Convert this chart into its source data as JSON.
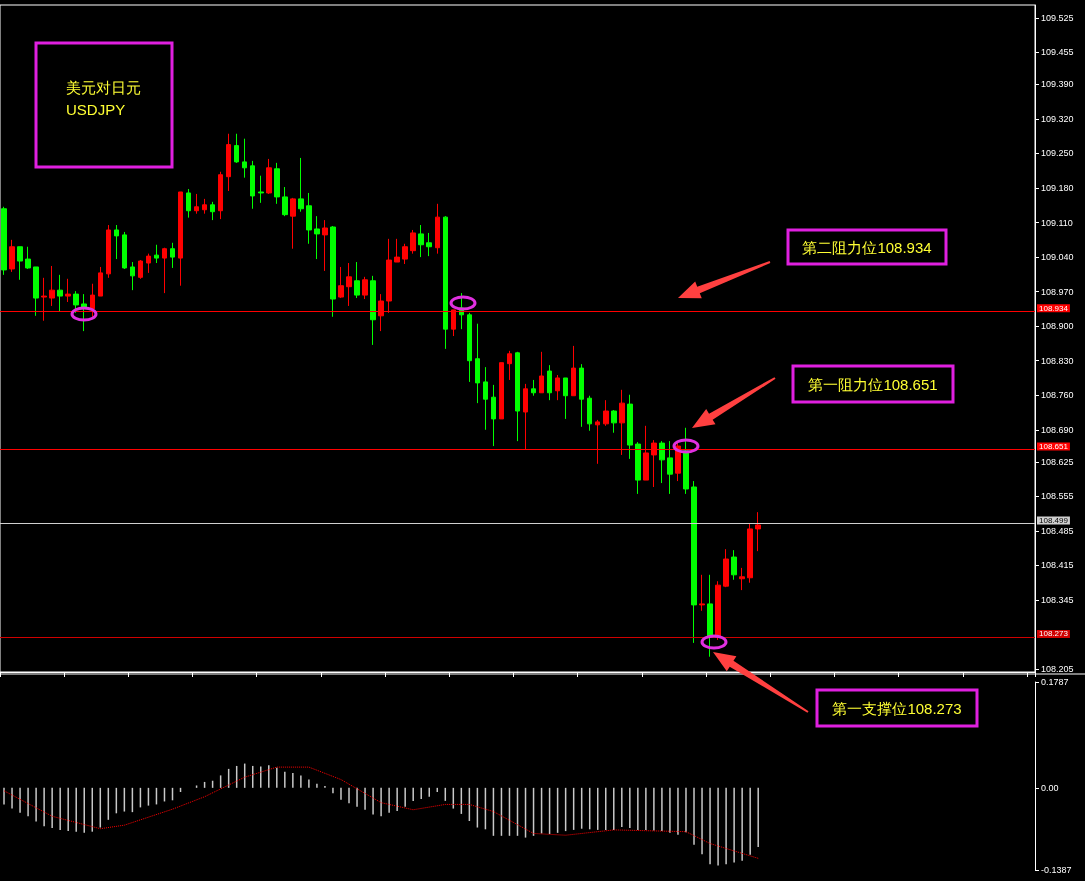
{
  "chart_data": [
    {
      "type": "candlestick",
      "categories": [
        null,
        null,
        null,
        null,
        null,
        null,
        null,
        null,
        null,
        null,
        null,
        null,
        null,
        null,
        null,
        null,
        null,
        null,
        null,
        null,
        null,
        null,
        null,
        null,
        null,
        null,
        null,
        null,
        null,
        null,
        null,
        null,
        null,
        null,
        null,
        null,
        null,
        null,
        null,
        null,
        null,
        null,
        null,
        null,
        null,
        null,
        null,
        null,
        null,
        null,
        null,
        null,
        null,
        null,
        null,
        null,
        null,
        null,
        null,
        null,
        null,
        null,
        null,
        null,
        null,
        null,
        null,
        null,
        null,
        null,
        null,
        null,
        null,
        null,
        null,
        null,
        null,
        null,
        null,
        null,
        null,
        null,
        null,
        null,
        null,
        null,
        null,
        null,
        null,
        null,
        null,
        null,
        null,
        null,
        null,
        null,
        null,
        null,
        null,
        null,
        null,
        null,
        null,
        null,
        null,
        null,
        null,
        null,
        null,
        null,
        null,
        null,
        null,
        null,
        null,
        null,
        null,
        null,
        null,
        null,
        null,
        null,
        null,
        null,
        null,
        null,
        null,
        null,
        null
      ],
      "ohlc": [
        [
          109.138,
          109.142,
          109.004,
          109.014
        ],
        [
          109.016,
          109.075,
          109.01,
          109.061
        ],
        [
          109.061,
          109.061,
          108.994,
          109.032
        ],
        [
          109.036,
          109.061,
          109.016,
          109.018
        ],
        [
          109.02,
          109.02,
          108.921,
          108.957
        ],
        [
          108.959,
          108.998,
          108.911,
          108.961
        ],
        [
          108.957,
          109.022,
          108.941,
          108.973
        ],
        [
          108.973,
          109.004,
          108.929,
          108.961
        ],
        [
          108.961,
          108.996,
          108.949,
          108.965
        ],
        [
          108.965,
          108.971,
          108.927,
          108.943
        ],
        [
          108.945,
          108.965,
          108.89,
          108.937
        ],
        [
          108.935,
          108.986,
          108.919,
          108.963
        ],
        [
          108.961,
          109.02,
          108.961,
          109.008
        ],
        [
          109.006,
          109.105,
          108.998,
          109.095
        ],
        [
          109.095,
          109.105,
          109.036,
          109.083
        ],
        [
          109.085,
          109.091,
          109.016,
          109.018
        ],
        [
          109.02,
          109.03,
          108.973,
          109.002
        ],
        [
          108.999,
          109.034,
          108.996,
          109.032
        ],
        [
          109.028,
          109.047,
          109.008,
          109.042
        ],
        [
          109.044,
          109.065,
          109.028,
          109.038
        ],
        [
          109.038,
          109.059,
          108.967,
          109.057
        ],
        [
          109.057,
          109.069,
          109.018,
          109.04
        ],
        [
          109.038,
          109.172,
          108.982,
          109.172
        ],
        [
          109.17,
          109.178,
          109.12,
          109.134
        ],
        [
          109.134,
          109.168,
          109.128,
          109.142
        ],
        [
          109.136,
          109.158,
          109.128,
          109.146
        ],
        [
          109.146,
          109.152,
          109.115,
          109.132
        ],
        [
          109.134,
          109.213,
          109.117,
          109.207
        ],
        [
          109.203,
          109.29,
          109.174,
          109.268
        ],
        [
          109.266,
          109.29,
          109.231,
          109.233
        ],
        [
          109.233,
          109.28,
          109.201,
          109.221
        ],
        [
          109.225,
          109.235,
          109.138,
          109.164
        ],
        [
          109.172,
          109.205,
          109.15,
          109.17
        ],
        [
          109.17,
          109.239,
          109.168,
          109.221
        ],
        [
          109.219,
          109.231,
          109.148,
          109.162
        ],
        [
          109.162,
          109.182,
          109.123,
          109.126
        ],
        [
          109.123,
          109.16,
          109.057,
          109.158
        ],
        [
          109.158,
          109.241,
          109.132,
          109.138
        ],
        [
          109.144,
          109.17,
          109.067,
          109.095
        ],
        [
          109.097,
          109.123,
          109.036,
          109.087
        ],
        [
          109.085,
          109.115,
          109.012,
          109.099
        ],
        [
          109.101,
          109.103,
          108.919,
          108.955
        ],
        [
          108.959,
          109.02,
          108.957,
          108.982
        ],
        [
          108.98,
          109.028,
          108.941,
          109.0
        ],
        [
          108.992,
          109.03,
          108.957,
          108.963
        ],
        [
          108.963,
          109.0,
          108.955,
          108.994
        ],
        [
          108.992,
          109.002,
          108.862,
          108.913
        ],
        [
          108.921,
          108.965,
          108.89,
          108.951
        ],
        [
          108.951,
          109.077,
          108.927,
          109.034
        ],
        [
          109.03,
          109.077,
          109.03,
          109.04
        ],
        [
          109.036,
          109.067,
          109.026,
          109.061
        ],
        [
          109.053,
          109.095,
          109.047,
          109.089
        ],
        [
          109.087,
          109.105,
          109.04,
          109.065
        ],
        [
          109.069,
          109.089,
          109.042,
          109.061
        ],
        [
          109.059,
          109.148,
          109.047,
          109.121
        ],
        [
          109.121,
          109.123,
          108.854,
          108.894
        ],
        [
          108.894,
          108.933,
          108.88,
          108.933
        ],
        [
          108.937,
          108.967,
          108.894,
          108.923
        ],
        [
          108.923,
          108.927,
          108.787,
          108.83
        ],
        [
          108.834,
          108.905,
          108.744,
          108.785
        ],
        [
          108.787,
          108.817,
          108.69,
          108.752
        ],
        [
          108.756,
          108.781,
          108.657,
          108.712
        ],
        [
          108.712,
          108.826,
          108.712,
          108.826
        ],
        [
          108.824,
          108.85,
          108.791,
          108.844
        ],
        [
          108.846,
          108.848,
          108.667,
          108.728
        ],
        [
          108.726,
          108.783,
          108.649,
          108.773
        ],
        [
          108.773,
          108.791,
          108.759,
          108.765
        ],
        [
          108.765,
          108.848,
          108.765,
          108.799
        ],
        [
          108.809,
          108.821,
          108.75,
          108.765
        ],
        [
          108.769,
          108.801,
          108.75,
          108.795
        ],
        [
          108.795,
          108.795,
          108.712,
          108.759
        ],
        [
          108.759,
          108.86,
          108.759,
          108.815
        ],
        [
          108.815,
          108.823,
          108.696,
          108.752
        ],
        [
          108.754,
          108.759,
          108.688,
          108.702
        ],
        [
          108.7,
          108.71,
          108.621,
          108.706
        ],
        [
          108.702,
          108.75,
          108.698,
          108.728
        ],
        [
          108.728,
          108.73,
          108.684,
          108.704
        ],
        [
          108.704,
          108.771,
          108.639,
          108.744
        ],
        [
          108.742,
          108.761,
          108.631,
          108.659
        ],
        [
          108.661,
          108.665,
          108.56,
          108.588
        ],
        [
          108.588,
          108.698,
          108.588,
          108.643
        ],
        [
          108.639,
          108.669,
          108.574,
          108.663
        ],
        [
          108.663,
          108.667,
          108.582,
          108.629
        ],
        [
          108.633,
          108.667,
          108.56,
          108.6
        ],
        [
          108.602,
          108.667,
          108.586,
          108.657
        ],
        [
          108.647,
          108.694,
          108.56,
          108.57
        ],
        [
          108.574,
          108.586,
          108.258,
          108.335
        ],
        [
          108.335,
          108.396,
          108.323,
          108.337
        ],
        [
          108.337,
          108.396,
          108.23,
          108.272
        ],
        [
          108.272,
          108.383,
          108.264,
          108.375
        ],
        [
          108.373,
          108.448,
          108.371,
          108.428
        ],
        [
          108.432,
          108.446,
          108.386,
          108.396
        ],
        [
          108.388,
          108.41,
          108.365,
          108.392
        ],
        [
          108.39,
          108.501,
          108.38,
          108.489
        ],
        [
          108.489,
          108.523,
          108.444,
          108.497
        ],
        null,
        null,
        null,
        null,
        null,
        null,
        null,
        null,
        null,
        null,
        null,
        null,
        null,
        null,
        null,
        null,
        null,
        null,
        null,
        null,
        null,
        null,
        null,
        null,
        null,
        null,
        null,
        null,
        null,
        null,
        null,
        null,
        null,
        null
      ],
      "ylim": [
        108.199,
        109.551
      ],
      "yticks": [
        {
          "value": 109.525,
          "label": "109.525"
        },
        {
          "value": 109.455,
          "label": "109.455"
        },
        {
          "value": 109.39,
          "label": "109.390"
        },
        {
          "value": 109.32,
          "label": "109.320"
        },
        {
          "value": 109.25,
          "label": "109.250"
        },
        {
          "value": 109.18,
          "label": "109.180"
        },
        {
          "value": 109.11,
          "label": "109.110"
        },
        {
          "value": 109.04,
          "label": "109.040"
        },
        {
          "value": 108.97,
          "label": "108.970"
        },
        {
          "value": 108.9,
          "label": "108.900"
        },
        {
          "value": 108.83,
          "label": "108.830"
        },
        {
          "value": 108.76,
          "label": "108.760"
        },
        {
          "value": 108.69,
          "label": "108.690"
        },
        {
          "value": 108.625,
          "label": "108.625"
        },
        {
          "value": 108.555,
          "label": "108.555"
        },
        {
          "value": 108.485,
          "label": "108.485"
        },
        {
          "value": 108.415,
          "label": "108.415"
        },
        {
          "value": 108.345,
          "label": "108.345"
        },
        {
          "value": 108.205,
          "label": "108.205"
        }
      ],
      "ref_lines": [
        {
          "axis": "y",
          "value": 108.934,
          "label": "108.934",
          "color": "#ff0000"
        },
        {
          "axis": "y",
          "value": 108.651,
          "label": "108.651",
          "color": "#ff0000"
        },
        {
          "axis": "y",
          "value": 108.499,
          "label": "108.499",
          "color": "#d0d0d0"
        },
        {
          "axis": "y",
          "value": 108.273,
          "label": "108.273",
          "color": "#d00000"
        }
      ],
      "annotations": [
        "美元对日元\nUSDJPY",
        "第二阻力位108.934",
        "第一阻力位108.651",
        "第一支撑位108.273"
      ],
      "grid": false,
      "tick_labels": "y"
    },
    {
      "type": "bar",
      "categories": [
        null,
        null,
        null,
        null,
        null,
        null,
        null,
        null,
        null,
        null,
        null,
        null,
        null,
        null,
        null,
        null,
        null,
        null,
        null,
        null,
        null,
        null,
        null,
        null,
        null,
        null,
        null,
        null,
        null,
        null,
        null,
        null,
        null,
        null,
        null,
        null,
        null,
        null,
        null,
        null,
        null,
        null,
        null,
        null,
        null,
        null,
        null,
        null,
        null,
        null,
        null,
        null,
        null,
        null,
        null,
        null,
        null,
        null,
        null,
        null,
        null,
        null,
        null,
        null,
        null,
        null,
        null,
        null,
        null,
        null,
        null,
        null,
        null,
        null,
        null,
        null,
        null,
        null,
        null,
        null,
        null,
        null,
        null,
        null,
        null,
        null,
        null,
        null,
        null,
        null,
        null,
        null,
        null,
        null,
        null,
        null,
        null,
        null,
        null,
        null,
        null,
        null,
        null,
        null,
        null,
        null,
        null,
        null,
        null,
        null,
        null,
        null,
        null,
        null,
        null,
        null,
        null,
        null,
        null,
        null,
        null,
        null,
        null,
        null,
        null,
        null,
        null,
        null,
        null
      ],
      "series": [
        {
          "type": "bar",
          "color": "#c8c8c8",
          "values": [
            -0.028,
            -0.035,
            -0.042,
            -0.048,
            -0.057,
            -0.065,
            -0.068,
            -0.071,
            -0.073,
            -0.074,
            -0.076,
            -0.074,
            -0.067,
            -0.054,
            -0.043,
            -0.04,
            -0.041,
            -0.033,
            -0.03,
            -0.028,
            -0.023,
            -0.021,
            -0.007,
            0,
            0.004,
            0.01,
            0.012,
            0.021,
            0.032,
            0.037,
            0.041,
            0.037,
            0.036,
            0.038,
            0.034,
            0.027,
            0.025,
            0.021,
            0.014,
            0.007,
            0.003,
            -0.009,
            -0.02,
            -0.026,
            -0.032,
            -0.037,
            -0.045,
            -0.048,
            -0.042,
            -0.039,
            -0.032,
            -0.022,
            -0.019,
            -0.015,
            -0.007,
            -0.022,
            -0.035,
            -0.044,
            -0.056,
            -0.067,
            -0.07,
            -0.081,
            -0.081,
            -0.081,
            -0.081,
            -0.084,
            -0.081,
            -0.077,
            -0.078,
            -0.076,
            -0.073,
            -0.071,
            -0.069,
            -0.07,
            -0.071,
            -0.071,
            -0.071,
            -0.066,
            -0.068,
            -0.071,
            -0.071,
            -0.072,
            -0.073,
            -0.076,
            -0.079,
            -0.075,
            -0.096,
            -0.112,
            -0.129,
            -0.131,
            -0.129,
            -0.126,
            -0.123,
            -0.113,
            -0.1,
            null,
            null,
            null,
            null,
            null,
            null,
            null,
            null,
            null,
            null,
            null,
            null,
            null,
            null,
            null,
            null,
            null,
            null,
            null,
            null,
            null,
            null,
            null,
            null,
            null,
            null,
            null,
            null,
            null,
            null,
            null,
            null,
            null,
            null
          ]
        },
        {
          "type": "line",
          "color": "#ff0000",
          "line_style": "dotted",
          "values": [
            -0.005,
            null,
            null,
            null,
            null,
            null,
            -0.048,
            null,
            null,
            null,
            null,
            null,
            -0.069,
            null,
            null,
            -0.063,
            null,
            null,
            null,
            null,
            null,
            -0.036,
            null,
            null,
            null,
            -0.015,
            null,
            null,
            null,
            null,
            0.018,
            null,
            null,
            null,
            0.035,
            null,
            null,
            null,
            0.035,
            null,
            null,
            null,
            0.014,
            null,
            null,
            null,
            null,
            -0.025,
            null,
            null,
            null,
            -0.037,
            null,
            null,
            null,
            -0.028,
            null,
            null,
            -0.028,
            null,
            null,
            -0.04,
            null,
            null,
            null,
            null,
            -0.077,
            null,
            null,
            null,
            -0.08,
            null,
            null,
            null,
            null,
            null,
            -0.071,
            null,
            null,
            null,
            null,
            null,
            null,
            null,
            null,
            -0.074,
            null,
            null,
            -0.094,
            null,
            null,
            null,
            null,
            null,
            -0.119,
            null,
            null,
            null,
            null,
            null,
            null,
            null,
            null,
            null,
            null,
            null,
            null,
            null,
            null,
            null,
            null,
            null,
            null,
            null,
            null,
            null,
            null,
            null,
            null,
            null,
            null,
            null,
            null,
            null,
            null,
            null,
            null,
            null,
            null
          ]
        }
      ],
      "ylim": [
        -0.1387,
        0.1787
      ],
      "yticks": [
        {
          "value": 0.1787,
          "label": "0.1787"
        },
        {
          "value": 0,
          "label": "0.00"
        },
        {
          "value": -0.1387,
          "label": "-0.1387"
        }
      ],
      "marker": "none",
      "grid": false,
      "tick_labels": "y"
    }
  ]
}
